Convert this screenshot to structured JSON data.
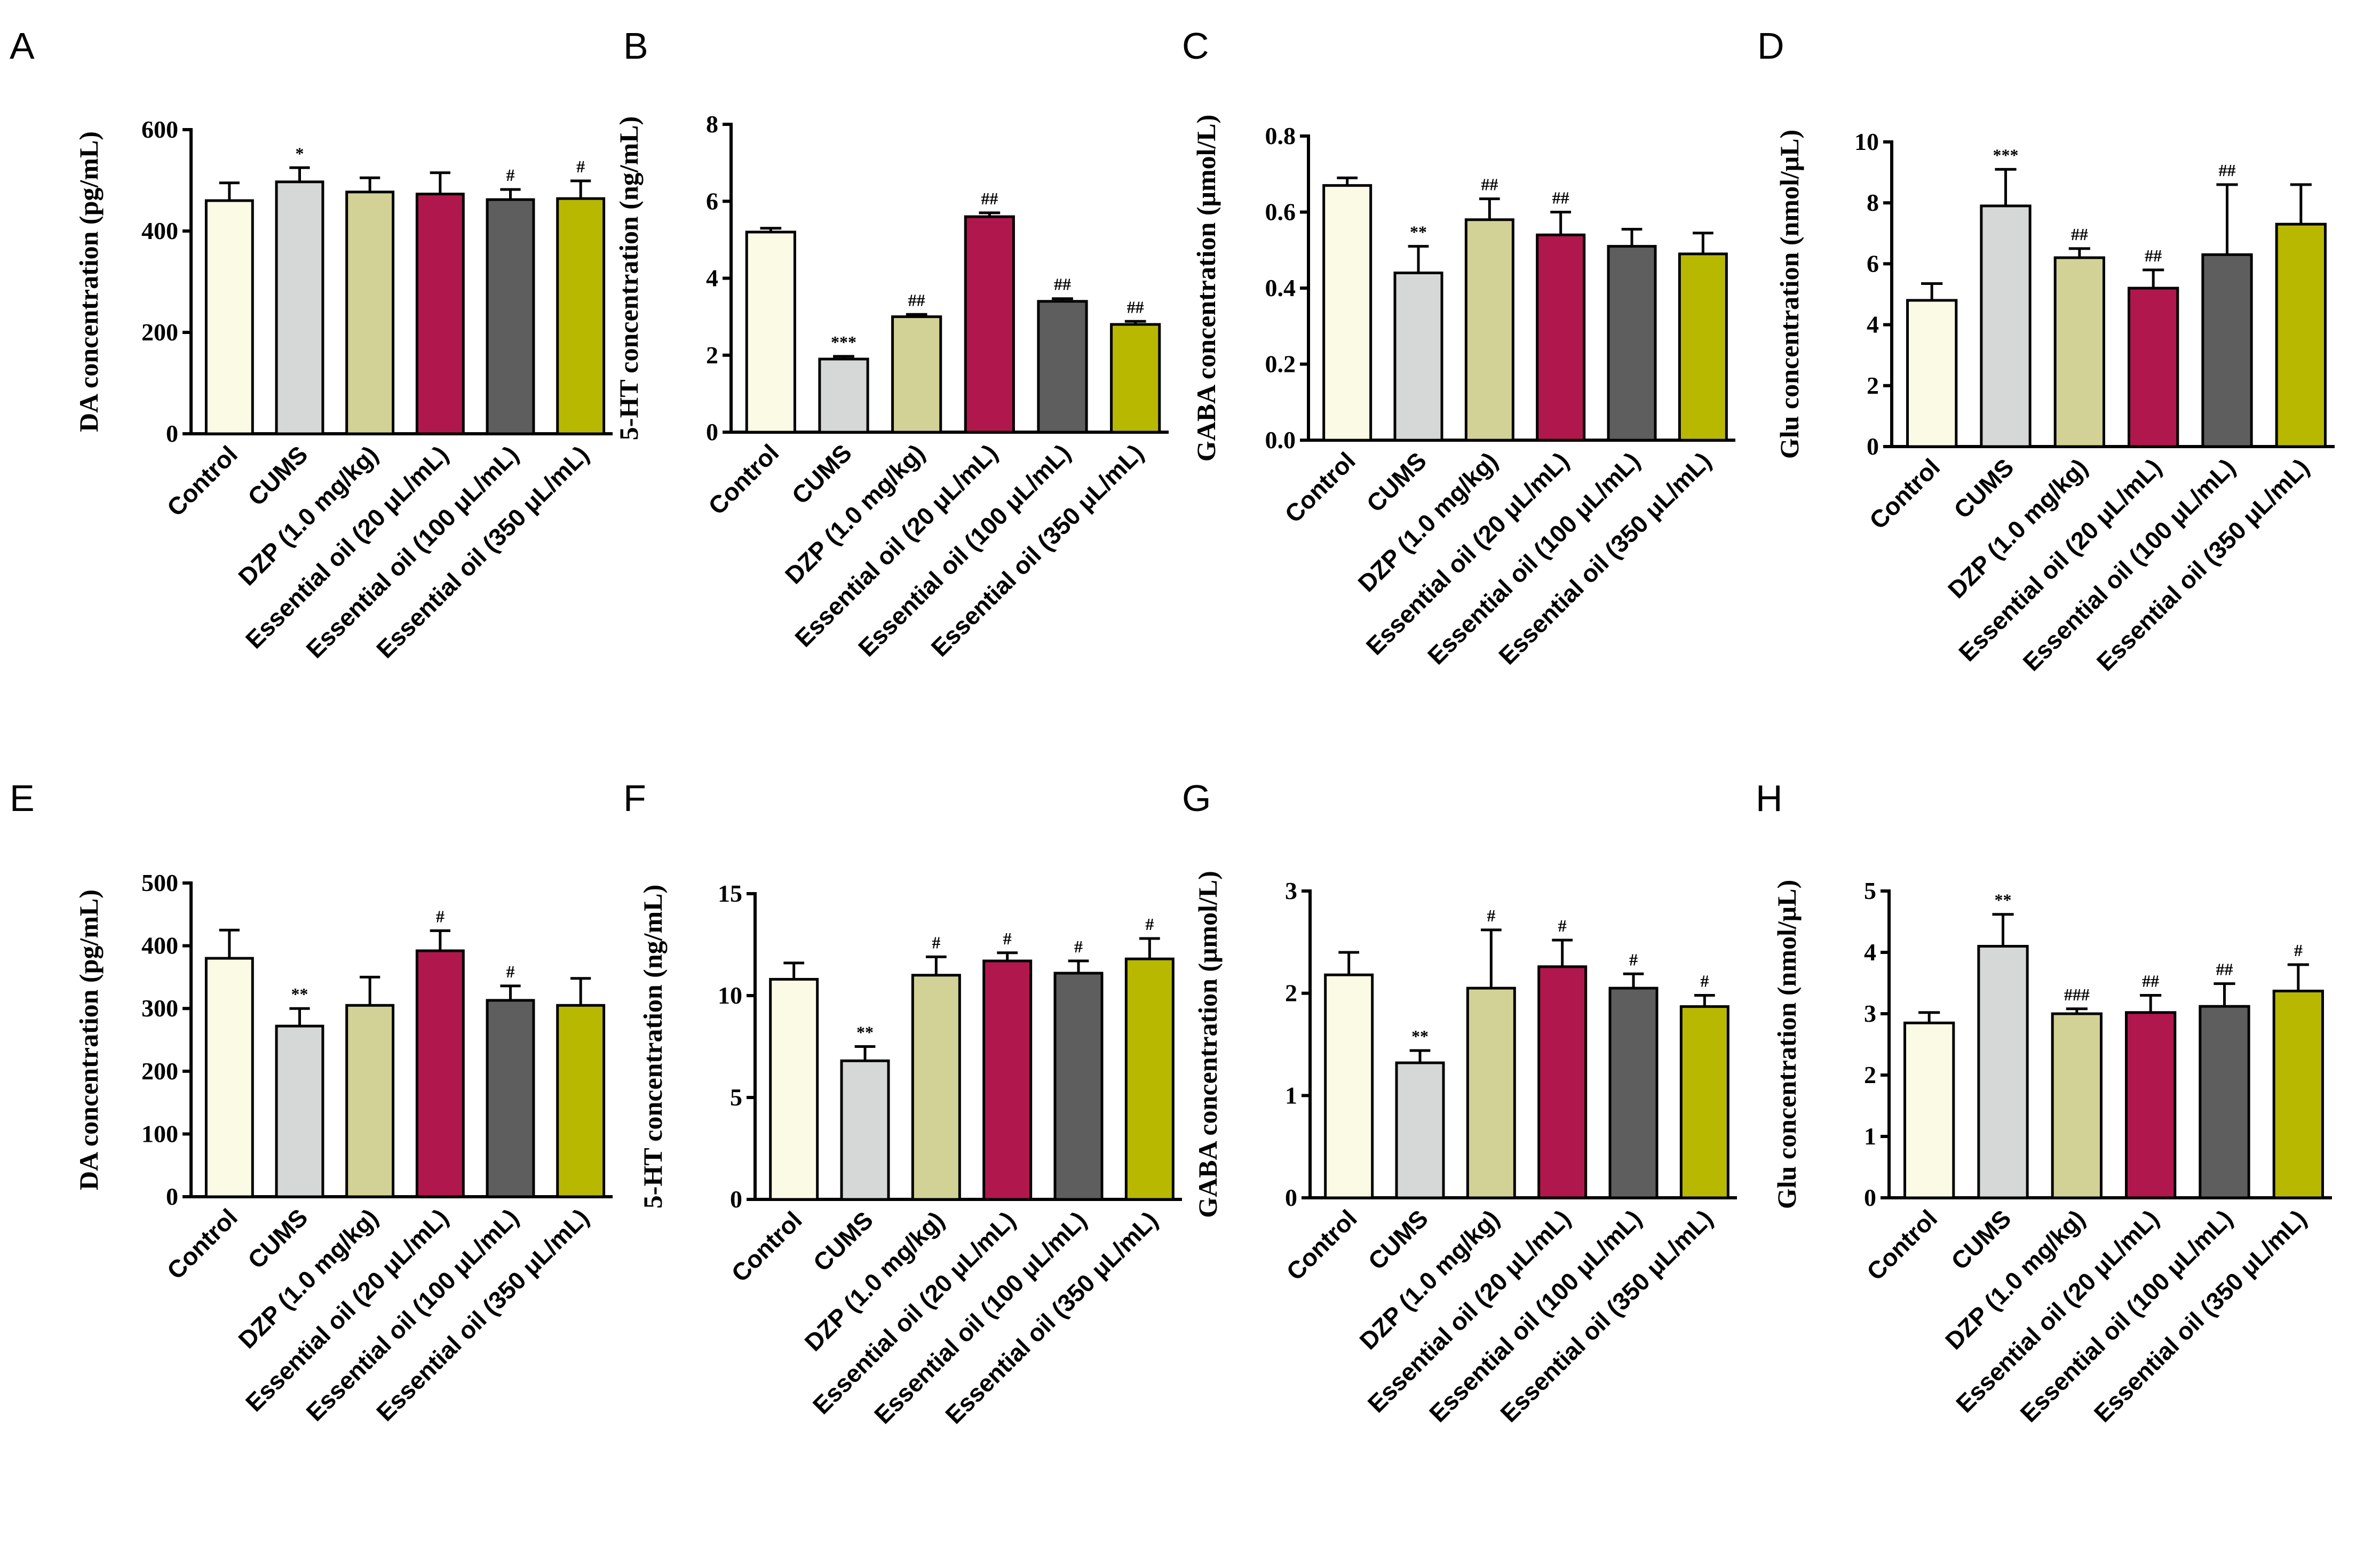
{
  "colors": [
    "#fbfae5",
    "#d6d7d7",
    "#d2d296",
    "#b0174d",
    "#5e5e5e",
    "#b9b801"
  ],
  "chart_data": [
    {
      "panel": "A",
      "type": "bar",
      "categories": [
        "Control",
        "CUMS",
        "DZP (1.0 mg/kg)",
        "Essential oil (20 μL/mL)",
        "Essential oil (100 μL/mL)",
        "Essential oil (350 μL/mL)"
      ],
      "values": [
        460,
        497,
        477,
        473,
        462,
        464
      ],
      "errors": [
        35,
        28,
        28,
        42,
        20,
        35
      ],
      "significance": [
        "",
        "*",
        "",
        "",
        "#",
        "#"
      ],
      "ylabel": "DA concentration (pg/mL)",
      "ylim": [
        0,
        600
      ],
      "yticks": [
        "0",
        "200",
        "400",
        "600"
      ]
    },
    {
      "panel": "B",
      "type": "bar",
      "categories": [
        "Control",
        "CUMS",
        "DZP (1.0 mg/kg)",
        "Essential oil (20 μL/mL)",
        "Essential oil (100 μL/mL)",
        "Essential oil (350 μL/mL)"
      ],
      "values": [
        5.2,
        1.9,
        3.0,
        5.6,
        3.4,
        2.8
      ],
      "errors": [
        0.1,
        0.07,
        0.06,
        0.1,
        0.07,
        0.08
      ],
      "significance": [
        "",
        "***",
        "##",
        "##",
        "##",
        "##"
      ],
      "ylabel": "5-HT concentration (ng/mL)",
      "ylim": [
        0,
        8
      ],
      "yticks": [
        "0",
        "2",
        "4",
        "6",
        "8"
      ]
    },
    {
      "panel": "C",
      "type": "bar",
      "categories": [
        "Control",
        "CUMS",
        "DZP (1.0 mg/kg)",
        "Essential oil (20 μL/mL)",
        "Essential oil (100 μL/mL)",
        "Essential oil (350 μL/mL)"
      ],
      "values": [
        0.67,
        0.44,
        0.58,
        0.54,
        0.51,
        0.49
      ],
      "errors": [
        0.02,
        0.07,
        0.055,
        0.06,
        0.045,
        0.055
      ],
      "significance": [
        "",
        "**",
        "##",
        "##",
        "",
        ""
      ],
      "ylabel": "GABA concentration (μmol/L)",
      "ylim": [
        0,
        0.8
      ],
      "yticks": [
        "0.0",
        "0.2",
        "0.4",
        "0.6",
        "0.8"
      ]
    },
    {
      "panel": "D",
      "type": "bar",
      "categories": [
        "Control",
        "CUMS",
        "DZP (1.0 mg/kg)",
        "Essential oil (20 μL/mL)",
        "Essential oil (100 μL/mL)",
        "Essential oil (350 μL/mL)"
      ],
      "values": [
        4.8,
        7.9,
        6.2,
        5.2,
        6.3,
        7.3
      ],
      "errors": [
        0.55,
        1.2,
        0.3,
        0.6,
        2.3,
        1.3
      ],
      "significance": [
        "",
        "***",
        "##",
        "##",
        "##",
        ""
      ],
      "ylabel": "Glu concentration (nmol/μL)",
      "ylim": [
        0,
        10
      ],
      "yticks": [
        "0",
        "2",
        "4",
        "6",
        "8",
        "10"
      ]
    },
    {
      "panel": "E",
      "type": "bar",
      "categories": [
        "Control",
        "CUMS",
        "DZP (1.0 mg/kg)",
        "Essential oil (20 μL/mL)",
        "Essential oil (100 μL/mL)",
        "Essential oil (350 μL/mL)"
      ],
      "values": [
        380,
        272,
        305,
        392,
        313,
        305
      ],
      "errors": [
        45,
        28,
        45,
        32,
        23,
        43
      ],
      "significance": [
        "",
        "**",
        "",
        "#",
        "#",
        ""
      ],
      "ylabel": "DA concentration (pg/mL)",
      "ylim": [
        0,
        500
      ],
      "yticks": [
        "0",
        "100",
        "200",
        "300",
        "400",
        "500"
      ]
    },
    {
      "panel": "F",
      "type": "bar",
      "categories": [
        "Control",
        "CUMS",
        "DZP (1.0 mg/kg)",
        "Essential oil (20 μL/mL)",
        "Essential oil (100 μL/mL)",
        "Essential oil (350 μL/mL)"
      ],
      "values": [
        10.8,
        6.8,
        11.0,
        11.7,
        11.1,
        11.8
      ],
      "errors": [
        0.8,
        0.7,
        0.9,
        0.4,
        0.6,
        1.0
      ],
      "significance": [
        "",
        "**",
        "#",
        "#",
        "#",
        "#"
      ],
      "ylabel": "5-HT concentration (ng/mL)",
      "ylim": [
        0,
        15
      ],
      "yticks": [
        "0",
        "5",
        "10",
        "15"
      ]
    },
    {
      "panel": "G",
      "type": "bar",
      "categories": [
        "Control",
        "CUMS",
        "DZP (1.0 mg/kg)",
        "Essential oil (20 μL/mL)",
        "Essential oil (100 μL/mL)",
        "Essential oil (350 μL/mL)"
      ],
      "values": [
        2.18,
        1.32,
        2.05,
        2.26,
        2.05,
        1.87
      ],
      "errors": [
        0.22,
        0.12,
        0.57,
        0.26,
        0.14,
        0.11
      ],
      "significance": [
        "",
        "**",
        "#",
        "#",
        "#",
        "#"
      ],
      "ylabel": "GABA concentration (μmol/L)",
      "ylim": [
        0,
        3
      ],
      "yticks": [
        "0",
        "1",
        "2",
        "3"
      ]
    },
    {
      "panel": "H",
      "type": "bar",
      "categories": [
        "Control",
        "CUMS",
        "DZP (1.0 mg/kg)",
        "Essential oil (20 μL/mL)",
        "Essential oil (100 μL/mL)",
        "Essential oil (350 μL/mL)"
      ],
      "values": [
        2.85,
        4.1,
        3.0,
        3.02,
        3.12,
        3.37
      ],
      "errors": [
        0.17,
        0.52,
        0.08,
        0.28,
        0.37,
        0.43
      ],
      "significance": [
        "",
        "**",
        "###",
        "##",
        "##",
        "#"
      ],
      "ylabel": "Glu concentration (nmol/μL)",
      "ylim": [
        0,
        5
      ],
      "yticks": [
        "0",
        "1",
        "2",
        "3",
        "4",
        "5"
      ]
    }
  ]
}
